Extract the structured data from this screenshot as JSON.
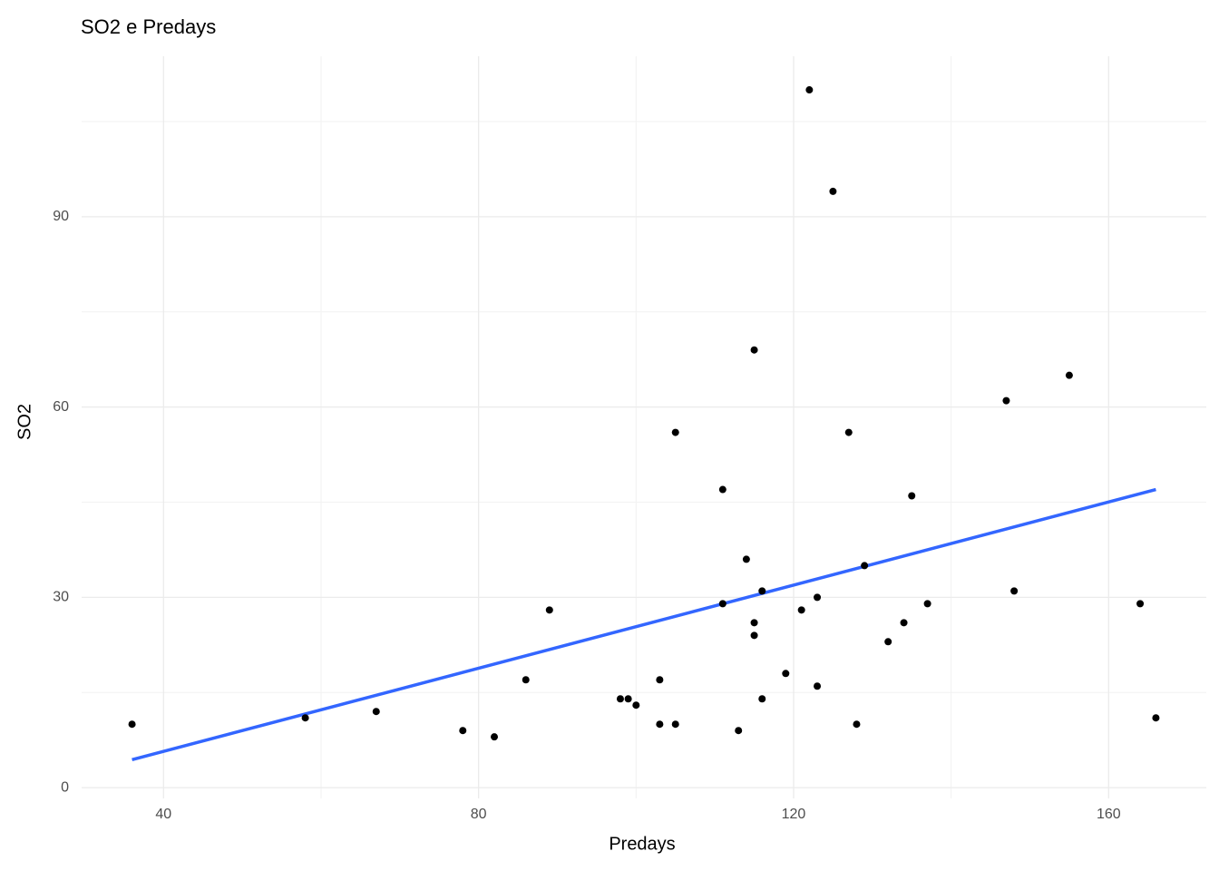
{
  "chart_data": {
    "type": "scatter",
    "title": "SO2 e Predays",
    "x_label": "Predays",
    "y_label": "SO2",
    "x": [
      36,
      58,
      67,
      78,
      82,
      86,
      89,
      98,
      99,
      100,
      103,
      103,
      105,
      105,
      111,
      111,
      113,
      114,
      115,
      115,
      115,
      116,
      116,
      119,
      121,
      122,
      123,
      123,
      125,
      127,
      128,
      129,
      132,
      134,
      135,
      137,
      147,
      148,
      155,
      164,
      166
    ],
    "values": [
      10,
      11,
      12,
      9,
      8,
      17,
      28,
      14,
      14,
      13,
      17,
      10,
      56,
      10,
      47,
      29,
      9,
      36,
      69,
      26,
      24,
      31,
      14,
      18,
      28,
      110,
      30,
      16,
      94,
      56,
      10,
      35,
      23,
      26,
      46,
      29,
      61,
      31,
      65,
      29,
      11
    ],
    "color": "#000000",
    "trend": {
      "x": [
        36,
        166
      ],
      "y": [
        4.4,
        47.0
      ],
      "color": "#3366FF"
    },
    "xlim": [
      29.6,
      172.4
    ],
    "ylim": [
      -1.7,
      115.3
    ],
    "xticks": [
      40,
      80,
      120,
      160
    ],
    "yticks": [
      0,
      30,
      60,
      90
    ],
    "xminor": [
      60,
      100,
      140
    ],
    "yminor": [
      15,
      45,
      75,
      105
    ],
    "grid": true
  }
}
